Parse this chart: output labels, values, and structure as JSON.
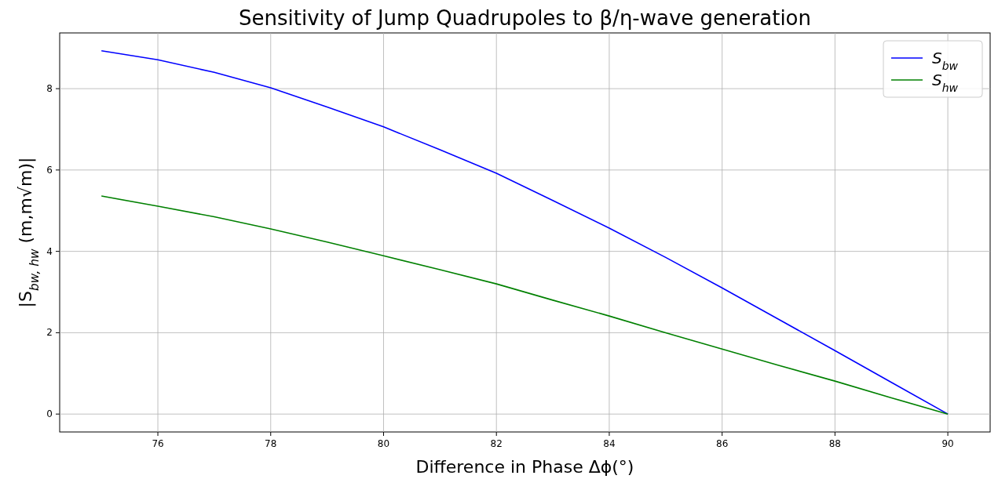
{
  "chart_data": {
    "type": "line",
    "title": "Sensitivity of Jump Quadrupoles to β/η-wave generation",
    "xlabel": "Difference in Phase Δϕ(°)",
    "ylabel": "|S$_{bw, hw}$ (m,m√m)|",
    "x": [
      75,
      76,
      77,
      78,
      79,
      80,
      81,
      82,
      83,
      84,
      85,
      86,
      87,
      88,
      89,
      90
    ],
    "series": [
      {
        "name": "S$_{bw}$",
        "color": "#0000ff",
        "values": [
          8.93,
          8.71,
          8.4,
          8.02,
          7.55,
          7.06,
          6.5,
          5.92,
          5.25,
          4.57,
          3.85,
          3.1,
          2.33,
          1.56,
          0.78,
          0
        ]
      },
      {
        "name": "S$_{hw}$",
        "color": "#008000",
        "values": [
          5.36,
          5.11,
          4.85,
          4.55,
          4.23,
          3.89,
          3.55,
          3.2,
          2.8,
          2.41,
          2.0,
          1.6,
          1.2,
          0.81,
          0.4,
          0
        ]
      }
    ],
    "xlim": [
      74.26,
      90.75
    ],
    "xticks": [
      76,
      78,
      80,
      82,
      84,
      86,
      88,
      90
    ],
    "ylim": [
      -0.44,
      9.37
    ],
    "yticks": [
      0,
      2,
      4,
      6,
      8
    ],
    "grid": true,
    "legend": "top right",
    "marker": "none",
    "line_style": "solid"
  }
}
